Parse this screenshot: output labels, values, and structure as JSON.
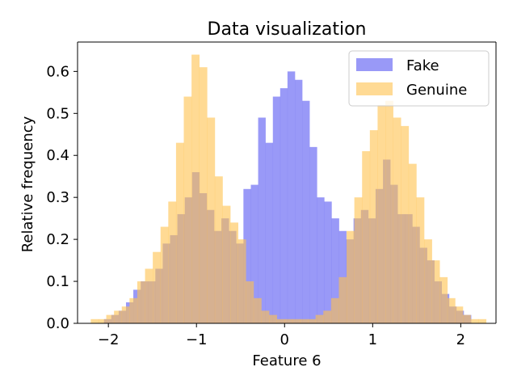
{
  "chart_data": {
    "type": "histogram",
    "title": "Data visualization",
    "xlabel": "Feature 6",
    "ylabel": "Relative frequency",
    "xlim": [
      -2.35,
      2.4
    ],
    "ylim": [
      0,
      0.67
    ],
    "xticks": [
      -2,
      -1,
      0,
      1,
      2
    ],
    "xtick_labels": [
      "−2",
      "−1",
      "0",
      "1",
      "2"
    ],
    "yticks": [
      0.0,
      0.1,
      0.2,
      0.3,
      0.4,
      0.5,
      0.6
    ],
    "ytick_labels": [
      "0.0",
      "0.1",
      "0.2",
      "0.3",
      "0.4",
      "0.5",
      "0.6"
    ],
    "grid": false,
    "legend_position": "top-right",
    "series": [
      {
        "name": "Fake",
        "color": "#7f7ff5",
        "opacity": 0.8,
        "bin_edges": [
          -2.05,
          -1.967,
          -1.883,
          -1.8,
          -1.717,
          -1.633,
          -1.55,
          -1.467,
          -1.383,
          -1.3,
          -1.217,
          -1.133,
          -1.05,
          -0.967,
          -0.883,
          -0.8,
          -0.717,
          -0.633,
          -0.55,
          -0.467,
          -0.383,
          -0.3,
          -0.217,
          -0.133,
          -0.05,
          0.033,
          0.117,
          0.2,
          0.283,
          0.367,
          0.45,
          0.533,
          0.617,
          0.7,
          0.783,
          0.867,
          0.95,
          1.033,
          1.117,
          1.2,
          1.283,
          1.367,
          1.45,
          1.533,
          1.617,
          1.7,
          1.783,
          1.867,
          1.95,
          2.033,
          2.117
        ],
        "values": [
          0.01,
          0.02,
          0.03,
          0.05,
          0.08,
          0.1,
          0.1,
          0.13,
          0.19,
          0.21,
          0.26,
          0.3,
          0.36,
          0.31,
          0.27,
          0.22,
          0.25,
          0.22,
          0.19,
          0.32,
          0.33,
          0.49,
          0.43,
          0.54,
          0.56,
          0.6,
          0.58,
          0.53,
          0.42,
          0.3,
          0.29,
          0.25,
          0.22,
          0.2,
          0.25,
          0.27,
          0.25,
          0.32,
          0.39,
          0.33,
          0.26,
          0.26,
          0.23,
          0.18,
          0.15,
          0.1,
          0.07,
          0.04,
          0.03,
          0.02
        ]
      },
      {
        "name": "Genuine",
        "color": "#ffc14d",
        "opacity": 0.6,
        "bin_edges": [
          -2.2,
          -2.112,
          -2.024,
          -1.936,
          -1.848,
          -1.76,
          -1.672,
          -1.584,
          -1.496,
          -1.408,
          -1.32,
          -1.232,
          -1.144,
          -1.056,
          -0.968,
          -0.88,
          -0.792,
          -0.704,
          -0.616,
          -0.528,
          -0.44,
          -0.352,
          -0.264,
          -0.176,
          -0.088,
          0.0,
          0.088,
          0.176,
          0.264,
          0.352,
          0.44,
          0.528,
          0.616,
          0.704,
          0.792,
          0.88,
          0.968,
          1.056,
          1.144,
          1.232,
          1.32,
          1.408,
          1.496,
          1.584,
          1.672,
          1.76,
          1.848,
          1.936,
          2.024,
          2.112,
          2.2,
          2.288
        ],
        "values": [
          0.01,
          0.01,
          0.02,
          0.03,
          0.04,
          0.06,
          0.1,
          0.13,
          0.17,
          0.23,
          0.29,
          0.43,
          0.54,
          0.64,
          0.61,
          0.49,
          0.35,
          0.28,
          0.24,
          0.2,
          0.1,
          0.06,
          0.03,
          0.02,
          0.01,
          0.01,
          0.01,
          0.01,
          0.01,
          0.02,
          0.03,
          0.06,
          0.11,
          0.22,
          0.3,
          0.41,
          0.46,
          0.52,
          0.53,
          0.49,
          0.47,
          0.38,
          0.3,
          0.2,
          0.15,
          0.11,
          0.06,
          0.04,
          0.02,
          0.01,
          0.01
        ]
      }
    ]
  }
}
